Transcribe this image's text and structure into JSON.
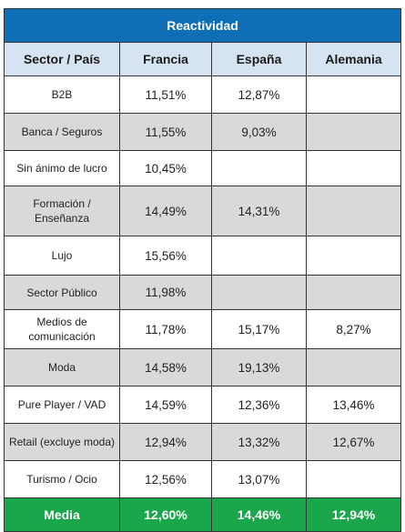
{
  "table": {
    "title": "Reactividad",
    "headers": [
      "Sector / País",
      "Francia",
      "España",
      "Alemania"
    ],
    "rows": [
      {
        "sector": "B2B",
        "francia": "11,51%",
        "espana": "12,87%",
        "alemania": ""
      },
      {
        "sector": "Banca / Seguros",
        "francia": "11,55%",
        "espana": "9,03%",
        "alemania": ""
      },
      {
        "sector": "Sin ánimo de lucro",
        "francia": "10,45%",
        "espana": "",
        "alemania": ""
      },
      {
        "sector": "Formación / Enseñanza",
        "francia": "14,49%",
        "espana": "14,31%",
        "alemania": ""
      },
      {
        "sector": "Lujo",
        "francia": "15,56%",
        "espana": "",
        "alemania": ""
      },
      {
        "sector": "Sector Público",
        "francia": "11,98%",
        "espana": "",
        "alemania": ""
      },
      {
        "sector": "Medios de comunicación",
        "francia": "11,78%",
        "espana": "15,17%",
        "alemania": "8,27%"
      },
      {
        "sector": "Moda",
        "francia": "14,58%",
        "espana": "19,13%",
        "alemania": ""
      },
      {
        "sector": "Pure Player / VAD",
        "francia": "14,59%",
        "espana": "12,36%",
        "alemania": "13,46%"
      },
      {
        "sector": "Retail (excluye moda)",
        "francia": "12,94%",
        "espana": "13,32%",
        "alemania": "12,67%"
      },
      {
        "sector": "Turismo / Ocio",
        "francia": "12,56%",
        "espana": "13,07%",
        "alemania": ""
      }
    ],
    "total": {
      "label": "Media",
      "francia": "12,60%",
      "espana": "14,46%",
      "alemania": "12,94%"
    }
  },
  "colors": {
    "title_bg": "#0f6fb6",
    "header_bg": "#d6e4f1",
    "shaded_row_bg": "#d9d9d9",
    "total_bg": "#1aa64a"
  }
}
